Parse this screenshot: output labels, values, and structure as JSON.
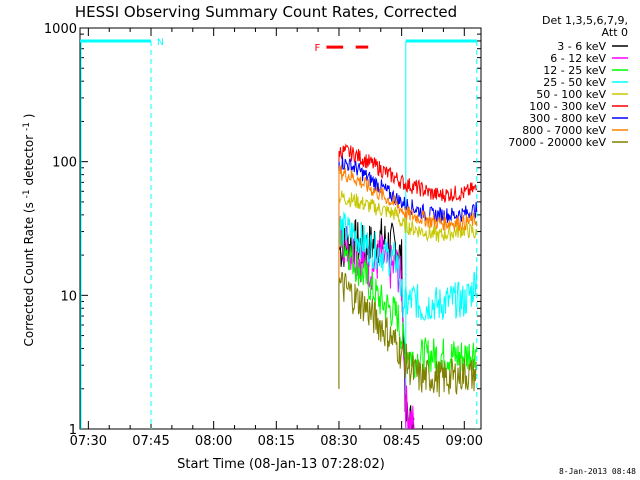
{
  "chart_data": {
    "type": "line",
    "title": "HESSI Observing Summary Count Rates, Corrected",
    "xlabel": "Start Time (08-Jan-13 07:28:02)",
    "ylabel_main": "Corrected Count Rate (s",
    "ylabel_sup1": "-1",
    "ylabel_mid": " detector",
    "ylabel_sup2": "-1",
    "ylabel_end": ")",
    "timestamp": "8-Jan-2013 08:48",
    "yscale": "log",
    "ylim": [
      1,
      1000
    ],
    "xlim_minutes": [
      -2,
      78
    ],
    "x_ticks": [
      {
        "m": 0,
        "label": "07:30"
      },
      {
        "m": 15,
        "label": "07:45"
      },
      {
        "m": 30,
        "label": "08:00"
      },
      {
        "m": 45,
        "label": "08:15"
      },
      {
        "m": 60,
        "label": "08:30"
      },
      {
        "m": 75,
        "label": "08:45"
      },
      {
        "m": 90,
        "label": "09:00"
      }
    ],
    "y_ticks": [
      {
        "v": 1,
        "label": "1"
      },
      {
        "v": 10,
        "label": "10"
      },
      {
        "v": 100,
        "label": "100"
      },
      {
        "v": 1000,
        "label": "1000"
      }
    ],
    "legend_header_1": "Det 1,3,5,6,7,9,",
    "legend_header_2": "Att 0",
    "series": [
      {
        "name": "3 - 6 keV",
        "color": "#000000",
        "start": 60,
        "points": [
          [
            60,
            22
          ],
          [
            62,
            24
          ],
          [
            64,
            25
          ],
          [
            66,
            22
          ],
          [
            68,
            24
          ],
          [
            70,
            26
          ],
          [
            72,
            24
          ],
          [
            74,
            23
          ],
          [
            75,
            18
          ],
          [
            76,
            1.2
          ],
          [
            77,
            1.1
          ],
          [
            78,
            1
          ]
        ]
      },
      {
        "name": "6 - 12 keV",
        "color": "#ff00ff",
        "start": 60,
        "points": [
          [
            60,
            30
          ],
          [
            62,
            24
          ],
          [
            64,
            20
          ],
          [
            66,
            18
          ],
          [
            68,
            16
          ],
          [
            70,
            20
          ],
          [
            72,
            16
          ],
          [
            74,
            16
          ],
          [
            75,
            12
          ],
          [
            76,
            1.5
          ],
          [
            77,
            1.2
          ],
          [
            78,
            1
          ]
        ]
      },
      {
        "name": "12 - 25 keV",
        "color": "#00ff00",
        "start": 60,
        "points": [
          [
            60,
            30
          ],
          [
            62,
            22
          ],
          [
            64,
            17
          ],
          [
            66,
            14
          ],
          [
            68,
            11
          ],
          [
            70,
            9
          ],
          [
            72,
            8
          ],
          [
            74,
            7
          ],
          [
            75,
            5
          ],
          [
            76,
            4
          ],
          [
            78,
            3.3
          ],
          [
            80,
            3.5
          ],
          [
            84,
            3.6
          ],
          [
            88,
            3.5
          ],
          [
            90,
            3.5
          ],
          [
            92,
            3.8
          ],
          [
            93,
            4
          ]
        ]
      },
      {
        "name": "25 - 50 keV",
        "color": "#00ffff",
        "start": 60,
        "points": [
          [
            60,
            33
          ],
          [
            62,
            30
          ],
          [
            64,
            28
          ],
          [
            66,
            25
          ],
          [
            68,
            22
          ],
          [
            70,
            21
          ],
          [
            72,
            19
          ],
          [
            74,
            18
          ],
          [
            75,
            10
          ],
          [
            76,
            8.5
          ],
          [
            78,
            9.5
          ],
          [
            80,
            8
          ],
          [
            82,
            8.8
          ],
          [
            84,
            8.5
          ],
          [
            86,
            9
          ],
          [
            88,
            9.2
          ],
          [
            90,
            9
          ],
          [
            92,
            11
          ],
          [
            93,
            15
          ]
        ]
      },
      {
        "name": "50 - 100 keV",
        "color": "#c8c800",
        "start": 60,
        "points": [
          [
            60,
            55
          ],
          [
            62,
            53
          ],
          [
            64,
            51
          ],
          [
            66,
            48
          ],
          [
            68,
            46
          ],
          [
            70,
            44
          ],
          [
            72,
            42
          ],
          [
            74,
            40
          ],
          [
            75,
            34
          ],
          [
            76,
            33
          ],
          [
            80,
            30
          ],
          [
            84,
            28
          ],
          [
            88,
            30
          ],
          [
            90,
            31
          ],
          [
            92,
            30
          ],
          [
            93,
            28
          ]
        ]
      },
      {
        "name": "100 - 300 keV",
        "color": "#ff0000",
        "start": 60,
        "points": [
          [
            60,
            120
          ],
          [
            62,
            118
          ],
          [
            64,
            112
          ],
          [
            66,
            104
          ],
          [
            68,
            96
          ],
          [
            70,
            88
          ],
          [
            72,
            80
          ],
          [
            74,
            74
          ],
          [
            76,
            68
          ],
          [
            78,
            65
          ],
          [
            80,
            62
          ],
          [
            82,
            58
          ],
          [
            84,
            56
          ],
          [
            86,
            57
          ],
          [
            88,
            58
          ],
          [
            90,
            58
          ],
          [
            92,
            62
          ],
          [
            93,
            62
          ]
        ]
      },
      {
        "name": "300 - 800 keV",
        "color": "#0000ff",
        "start": 60,
        "points": [
          [
            60,
            100
          ],
          [
            62,
            96
          ],
          [
            64,
            90
          ],
          [
            66,
            80
          ],
          [
            68,
            72
          ],
          [
            70,
            65
          ],
          [
            72,
            58
          ],
          [
            74,
            52
          ],
          [
            76,
            48
          ],
          [
            78,
            45
          ],
          [
            80,
            42
          ],
          [
            82,
            40
          ],
          [
            84,
            40
          ],
          [
            86,
            40
          ],
          [
            88,
            40
          ],
          [
            90,
            41
          ],
          [
            92,
            43
          ],
          [
            93,
            44
          ]
        ]
      },
      {
        "name": "800 - 7000 keV",
        "color": "#ff8000",
        "start": 60,
        "points": [
          [
            60,
            84
          ],
          [
            62,
            80
          ],
          [
            64,
            75
          ],
          [
            66,
            68
          ],
          [
            68,
            62
          ],
          [
            70,
            57
          ],
          [
            72,
            52
          ],
          [
            74,
            47
          ],
          [
            76,
            41
          ],
          [
            78,
            39
          ],
          [
            80,
            38
          ],
          [
            82,
            36
          ],
          [
            84,
            35
          ],
          [
            86,
            35
          ],
          [
            88,
            35
          ],
          [
            90,
            35
          ],
          [
            92,
            36
          ],
          [
            93,
            37
          ]
        ]
      },
      {
        "name": "7000 - 20000 keV",
        "color": "#808000",
        "start": 60,
        "points": [
          [
            60,
            12
          ],
          [
            62,
            11
          ],
          [
            64,
            9.5
          ],
          [
            66,
            8.5
          ],
          [
            68,
            7
          ],
          [
            70,
            6
          ],
          [
            72,
            5
          ],
          [
            74,
            4.2
          ],
          [
            76,
            3.2
          ],
          [
            78,
            2.6
          ],
          [
            80,
            2.4
          ],
          [
            82,
            2.5
          ],
          [
            84,
            2.4
          ],
          [
            86,
            2.4
          ],
          [
            88,
            2.5
          ],
          [
            90,
            2.6
          ],
          [
            92,
            2.5
          ],
          [
            93,
            2.7
          ]
        ]
      }
    ],
    "annotations": {
      "night_label": "N",
      "flare_label": "F",
      "night_bars": [
        [
          -2,
          15
        ],
        [
          76,
          93
        ]
      ],
      "night_level": 800,
      "vertical_dashed": [
        15,
        93
      ],
      "vertical_solid": [
        76
      ],
      "flare_bar": [
        {
          "from": 57,
          "to": 61
        },
        {
          "from": 64,
          "to": 67
        }
      ],
      "flare_level": 720
    }
  }
}
